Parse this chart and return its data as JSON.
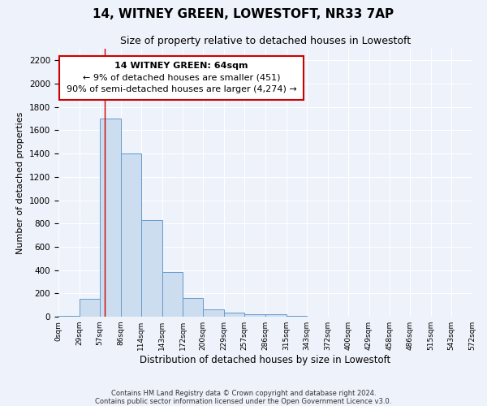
{
  "title": "14, WITNEY GREEN, LOWESTOFT, NR33 7AP",
  "subtitle": "Size of property relative to detached houses in Lowestoft",
  "xlabel": "Distribution of detached houses by size in Lowestoft",
  "ylabel": "Number of detached properties",
  "bar_color": "#ccddf0",
  "bar_edge_color": "#6699cc",
  "bin_edges": [
    0,
    29,
    57,
    86,
    114,
    143,
    172,
    200,
    229,
    257,
    286,
    315,
    343,
    372,
    400,
    429,
    458,
    486,
    515,
    543,
    572
  ],
  "bar_heights": [
    10,
    150,
    1700,
    1400,
    830,
    380,
    160,
    65,
    35,
    20,
    20,
    10,
    0,
    0,
    0,
    0,
    0,
    0,
    0,
    0
  ],
  "red_line_x": 64,
  "ylim": [
    0,
    2300
  ],
  "yticks": [
    0,
    200,
    400,
    600,
    800,
    1000,
    1200,
    1400,
    1600,
    1800,
    2000,
    2200
  ],
  "annotation_line1": "14 WITNEY GREEN: 64sqm",
  "annotation_line2": "← 9% of detached houses are smaller (451)",
  "annotation_line3": "90% of semi-detached houses are larger (4,274) →",
  "footer_line1": "Contains HM Land Registry data © Crown copyright and database right 2024.",
  "footer_line2": "Contains public sector information licensed under the Open Government Licence v3.0.",
  "background_color": "#eef2fb",
  "grid_color": "#ffffff",
  "annotation_box_color": "#ffffff",
  "annotation_box_edge": "#cc0000",
  "red_line_color": "#cc0000"
}
